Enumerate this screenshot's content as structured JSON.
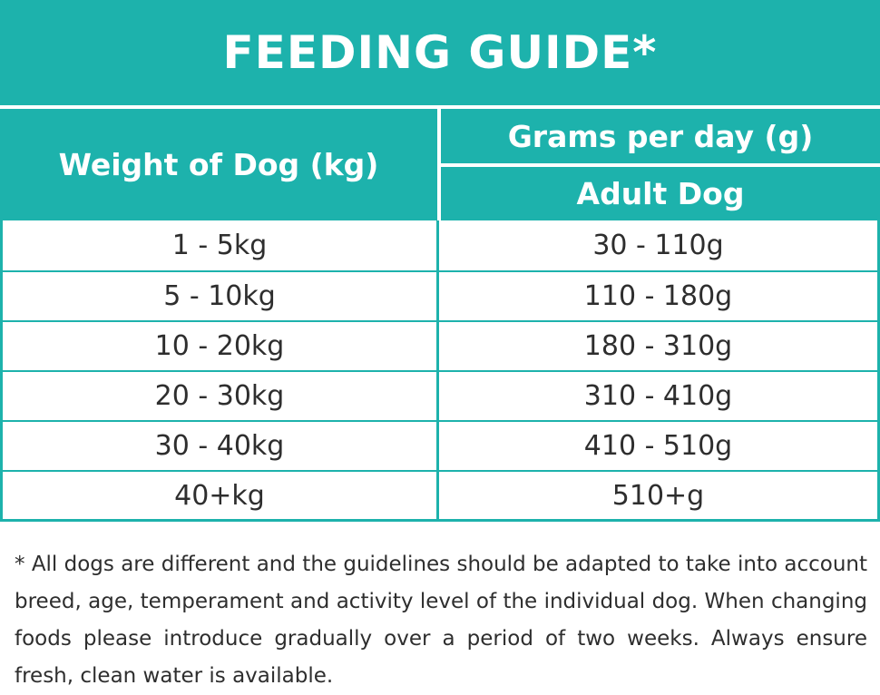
{
  "title": "FEEDING GUIDE*",
  "headers": {
    "weight": "Weight of Dog (kg)",
    "grams": "Grams per day (g)",
    "adult": "Adult Dog"
  },
  "rows": [
    {
      "weight": "1 - 5kg",
      "grams": "30 - 110g"
    },
    {
      "weight": "5 - 10kg",
      "grams": "110 - 180g"
    },
    {
      "weight": "10 - 20kg",
      "grams": "180 - 310g"
    },
    {
      "weight": "20 - 30kg",
      "grams": "310 - 410g"
    },
    {
      "weight": "30 - 40kg",
      "grams": "410 - 510g"
    },
    {
      "weight": "40+kg",
      "grams": "510+g"
    }
  ],
  "footnote": "* All dogs are different and the guidelines should be adapted to take into account breed, age, temperament and activity level of the individual dog. When changing foods please introduce gradually over a period of two weeks. Always ensure fresh, clean water is available.",
  "colors": {
    "accent": "#1db2ac",
    "text": "#2e2e2e"
  }
}
